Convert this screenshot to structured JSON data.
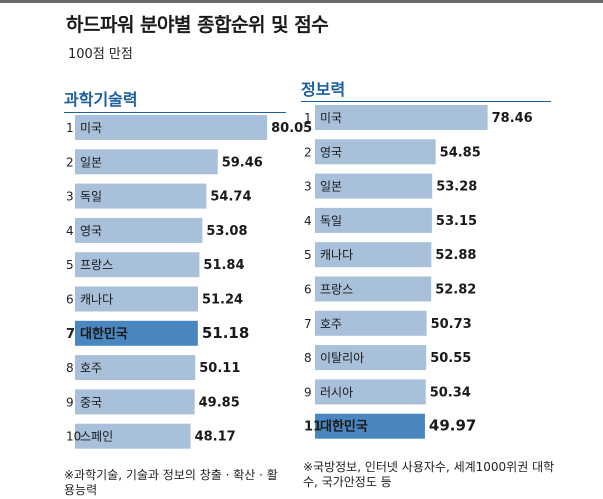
{
  "title": "하드파워 분야별 종합순위 및 점수",
  "subtitle": "100점 만점",
  "colors": {
    "bar": "#a9c0da",
    "highlight_bar": "#4a87c0",
    "title_accent": "#1c5f9f"
  },
  "chart_data": [
    {
      "type": "bar",
      "orientation": "horizontal",
      "title": "과학기술력",
      "ranks": [
        "1",
        "2",
        "3",
        "4",
        "5",
        "6",
        "7",
        "8",
        "9",
        "10"
      ],
      "categories": [
        "미국",
        "일본",
        "독일",
        "영국",
        "프랑스",
        "캐나다",
        "대한민국",
        "호주",
        "중국",
        "스페인"
      ],
      "values": [
        80.05,
        59.46,
        54.74,
        53.08,
        51.84,
        51.24,
        51.18,
        50.11,
        49.85,
        48.17
      ],
      "value_labels": [
        "80.05",
        "59.46",
        "54.74",
        "53.08",
        "51.84",
        "51.24",
        "51.18",
        "50.11",
        "49.85",
        "48.17"
      ],
      "highlight": "대한민국",
      "note": "※과학기술, 기술과 정보의 창출 · 확산 · 활용능력"
    },
    {
      "type": "bar",
      "orientation": "horizontal",
      "title": "정보력",
      "ranks": [
        "1",
        "2",
        "3",
        "4",
        "5",
        "6",
        "7",
        "8",
        "9",
        "11"
      ],
      "categories": [
        "미국",
        "영국",
        "일본",
        "독일",
        "캐나다",
        "프랑스",
        "호주",
        "이탈리아",
        "러시아",
        "대한민국"
      ],
      "values": [
        78.46,
        54.85,
        53.28,
        53.15,
        52.88,
        52.82,
        50.73,
        50.55,
        50.34,
        49.97
      ],
      "value_labels": [
        "78.46",
        "54.85",
        "53.28",
        "53.15",
        "52.88",
        "52.82",
        "50.73",
        "50.55",
        "50.34",
        "49.97"
      ],
      "highlight": "대한민국",
      "note": "※국방정보, 인터넷 사용자수, 세계1000위권 대학수, 국가안정도 등"
    }
  ]
}
